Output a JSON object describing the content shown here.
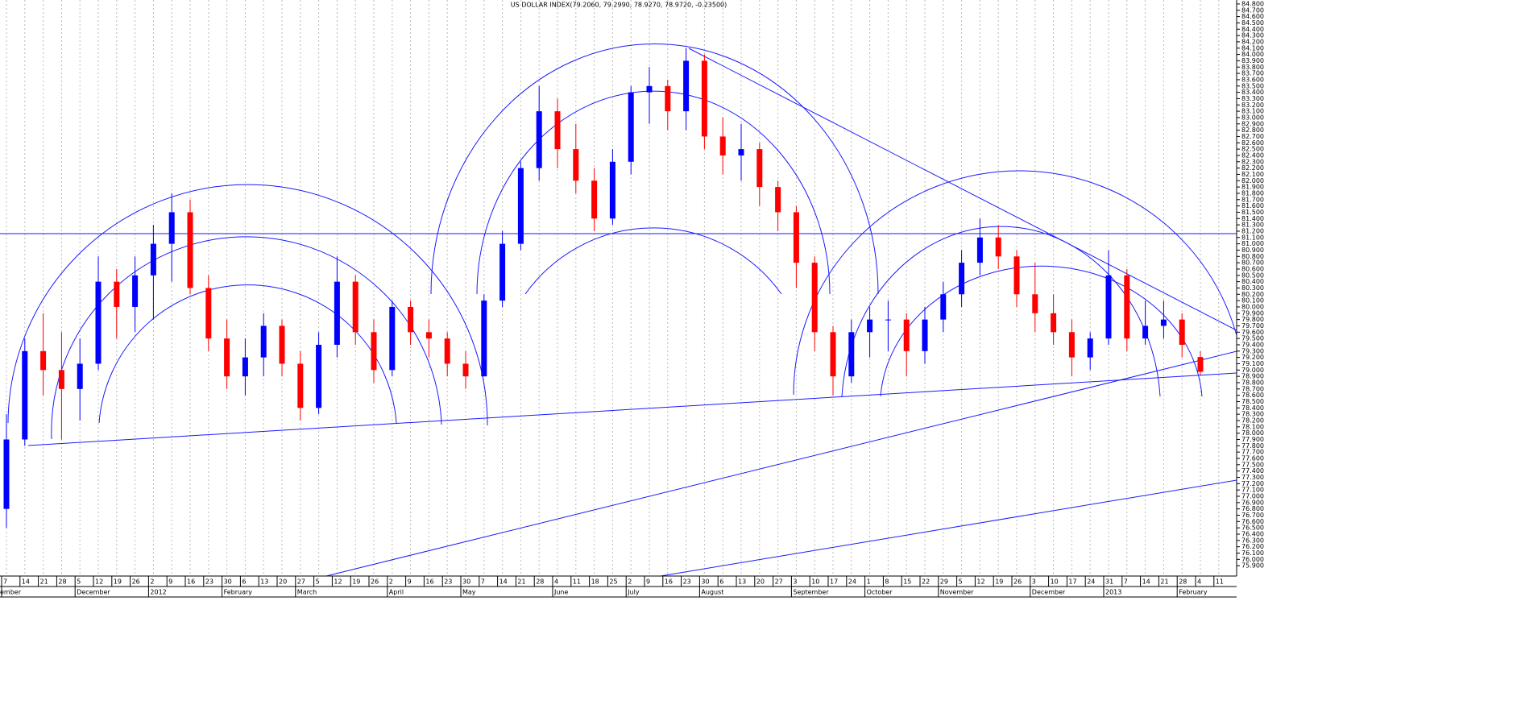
{
  "chart_data": {
    "type": "candlestick",
    "title": "US DOLLAR INDEX(79.2060, 79.2990, 78.9270, 78.9720, -0.23500)",
    "categories": [
      "7",
      "14",
      "21",
      "28",
      "5",
      "12",
      "19",
      "26",
      "2",
      "9",
      "16",
      "23",
      "30",
      "6",
      "13",
      "20",
      "27",
      "5",
      "12",
      "19",
      "26",
      "2",
      "9",
      "16",
      "23",
      "30",
      "7",
      "14",
      "21",
      "28",
      "4",
      "11",
      "18",
      "25",
      "2",
      "9",
      "16",
      "23",
      "30",
      "6",
      "13",
      "20",
      "27",
      "3",
      "10",
      "17",
      "24",
      "1",
      "8",
      "15",
      "22",
      "29",
      "5",
      "12",
      "19",
      "26",
      "3",
      "10",
      "17",
      "24",
      "31",
      "7",
      "14",
      "21",
      "28",
      "4",
      "11"
    ],
    "month_labels": [
      "ember",
      null,
      null,
      null,
      "December",
      null,
      null,
      null,
      "2012",
      null,
      null,
      null,
      "February",
      null,
      null,
      null,
      "March",
      null,
      null,
      null,
      null,
      "April",
      null,
      null,
      null,
      "May",
      null,
      null,
      null,
      null,
      "June",
      null,
      null,
      null,
      "July",
      null,
      null,
      null,
      "August",
      null,
      null,
      null,
      null,
      "September",
      null,
      null,
      null,
      "October",
      null,
      null,
      null,
      "November",
      null,
      null,
      null,
      null,
      "December",
      null,
      null,
      null,
      "2013",
      null,
      null,
      null,
      "February",
      null,
      null
    ],
    "open": [
      76.8,
      77.9,
      79.3,
      79.0,
      78.7,
      79.1,
      80.4,
      80.0,
      80.5,
      81.0,
      81.5,
      80.3,
      79.5,
      78.9,
      79.2,
      79.7,
      79.1,
      78.4,
      79.4,
      80.4,
      79.6,
      79.0,
      80.0,
      79.6,
      79.5,
      79.1,
      78.9,
      80.1,
      81.0,
      82.2,
      83.1,
      82.5,
      82.0,
      81.4,
      82.3,
      83.4,
      83.5,
      83.1,
      83.9,
      82.7,
      82.4,
      82.5,
      81.9,
      81.5,
      80.7,
      79.6,
      78.9,
      79.6,
      79.8,
      79.8,
      79.3,
      79.8,
      80.2,
      80.7,
      81.1,
      80.8,
      80.2,
      79.9,
      79.6,
      79.2,
      79.5,
      80.5,
      79.5,
      79.7,
      79.8,
      79.206,
      null
    ],
    "high": [
      78.3,
      79.5,
      79.9,
      79.6,
      79.5,
      80.8,
      80.6,
      80.8,
      81.3,
      81.8,
      81.7,
      80.5,
      79.8,
      79.5,
      79.9,
      79.8,
      79.3,
      79.6,
      80.8,
      80.5,
      79.8,
      80.1,
      80.1,
      79.8,
      79.6,
      79.3,
      80.2,
      81.2,
      82.3,
      83.5,
      83.3,
      82.9,
      82.2,
      82.5,
      83.5,
      83.8,
      83.6,
      84.1,
      84.0,
      83.0,
      82.9,
      82.6,
      82.0,
      81.6,
      80.8,
      79.7,
      79.8,
      80.0,
      80.1,
      79.9,
      80.0,
      80.4,
      80.9,
      81.4,
      81.3,
      80.9,
      80.7,
      80.2,
      79.8,
      79.6,
      80.9,
      80.6,
      80.1,
      80.1,
      79.9,
      79.299,
      null
    ],
    "low": [
      76.5,
      77.8,
      78.6,
      77.9,
      78.2,
      79.0,
      79.5,
      79.6,
      79.8,
      80.4,
      80.2,
      79.3,
      78.7,
      78.6,
      78.9,
      78.9,
      78.2,
      78.3,
      79.2,
      79.4,
      78.8,
      78.9,
      79.4,
      79.2,
      78.9,
      78.7,
      78.9,
      80.0,
      80.9,
      82.0,
      82.2,
      81.8,
      81.2,
      81.3,
      82.1,
      82.9,
      82.8,
      82.8,
      82.5,
      82.1,
      82.0,
      81.6,
      81.2,
      80.3,
      79.3,
      78.6,
      78.8,
      79.2,
      79.3,
      78.9,
      79.1,
      79.6,
      80.0,
      80.5,
      80.6,
      80.0,
      79.6,
      79.4,
      78.9,
      79.0,
      79.4,
      79.3,
      79.4,
      79.5,
      79.2,
      78.927,
      null
    ],
    "close": [
      77.9,
      79.3,
      79.0,
      78.7,
      79.1,
      80.4,
      80.0,
      80.5,
      81.0,
      81.5,
      80.3,
      79.5,
      78.9,
      79.2,
      79.7,
      79.1,
      78.4,
      79.4,
      80.4,
      79.6,
      79.0,
      80.0,
      79.6,
      79.5,
      79.1,
      78.9,
      80.1,
      81.0,
      82.2,
      83.1,
      82.5,
      82.0,
      81.4,
      82.3,
      83.4,
      83.5,
      83.1,
      83.9,
      82.7,
      82.4,
      82.5,
      81.9,
      81.5,
      80.7,
      79.6,
      78.9,
      79.6,
      79.8,
      79.8,
      79.3,
      79.8,
      80.2,
      80.7,
      81.1,
      80.8,
      80.2,
      79.9,
      79.6,
      79.2,
      79.5,
      80.5,
      79.5,
      79.7,
      79.8,
      79.4,
      78.972,
      null
    ],
    "up_color": "#0000ff",
    "down_color": "#ff0000",
    "ylim": [
      75.8,
      84.85
    ],
    "yticks": [
      {
        "value": 84.8,
        "label": "84.800"
      },
      {
        "value": 84.7,
        "label": "84.700"
      },
      {
        "value": 84.6,
        "label": "84.600"
      },
      {
        "value": 84.5,
        "label": "84.500"
      },
      {
        "value": 84.4,
        "label": "84.400"
      },
      {
        "value": 84.3,
        "label": "84.300"
      },
      {
        "value": 84.2,
        "label": "84.200"
      },
      {
        "value": 84.1,
        "label": "84.100"
      },
      {
        "value": 84,
        "label": "84.000"
      },
      {
        "value": 83.9,
        "label": "83.900"
      },
      {
        "value": 83.8,
        "label": "83.800"
      },
      {
        "value": 83.7,
        "label": "83.700"
      },
      {
        "value": 83.6,
        "label": "83.600"
      },
      {
        "value": 83.5,
        "label": "83.500"
      },
      {
        "value": 83.4,
        "label": "83.400"
      },
      {
        "value": 83.3,
        "label": "83.300"
      },
      {
        "value": 83.2,
        "label": "83.200"
      },
      {
        "value": 83.1,
        "label": "83.100"
      },
      {
        "value": 83,
        "label": "83.000"
      },
      {
        "value": 82.9,
        "label": "82.900"
      },
      {
        "value": 82.8,
        "label": "82.800"
      },
      {
        "value": 82.7,
        "label": "82.700"
      },
      {
        "value": 82.6,
        "label": "82.600"
      },
      {
        "value": 82.5,
        "label": "82.500"
      },
      {
        "value": 82.4,
        "label": "82.400"
      },
      {
        "value": 82.3,
        "label": "82.300"
      },
      {
        "value": 82.2,
        "label": "82.200"
      },
      {
        "value": 82.1,
        "label": "82.100"
      },
      {
        "value": 82,
        "label": "82.000"
      },
      {
        "value": 81.9,
        "label": "81.900"
      },
      {
        "value": 81.8,
        "label": "81.800"
      },
      {
        "value": 81.7,
        "label": "81.700"
      },
      {
        "value": 81.6,
        "label": "81.600"
      },
      {
        "value": 81.5,
        "label": "81.500"
      },
      {
        "value": 81.4,
        "label": "81.400"
      },
      {
        "value": 81.3,
        "label": "81.300"
      },
      {
        "value": 81.2,
        "label": "81.200"
      },
      {
        "value": 81.1,
        "label": "81.100"
      },
      {
        "value": 81,
        "label": "81.000"
      },
      {
        "value": 80.9,
        "label": "80.900"
      },
      {
        "value": 80.8,
        "label": "80.800"
      },
      {
        "value": 80.7,
        "label": "80.700"
      },
      {
        "value": 80.6,
        "label": "80.600"
      },
      {
        "value": 80.5,
        "label": "80.500"
      },
      {
        "value": 80.4,
        "label": "80.400"
      },
      {
        "value": 80.3,
        "label": "80.300"
      },
      {
        "value": 80.2,
        "label": "80.200"
      },
      {
        "value": 80.1,
        "label": "80.100"
      },
      {
        "value": 80,
        "label": "80.000"
      },
      {
        "value": 79.9,
        "label": "79.900"
      },
      {
        "value": 79.8,
        "label": "79.800"
      },
      {
        "value": 79.7,
        "label": "79.700"
      },
      {
        "value": 79.6,
        "label": "79.600"
      },
      {
        "value": 79.5,
        "label": "79.500"
      },
      {
        "value": 79.4,
        "label": "79.400"
      },
      {
        "value": 79.3,
        "label": "79.300"
      },
      {
        "value": 79.2,
        "label": "79.200"
      },
      {
        "value": 79.1,
        "label": "79.100"
      },
      {
        "value": 79,
        "label": "79.000"
      },
      {
        "value": 78.9,
        "label": "78.900"
      },
      {
        "value": 78.8,
        "label": "78.800"
      },
      {
        "value": 78.7,
        "label": "78.700"
      },
      {
        "value": 78.6,
        "label": "78.600"
      },
      {
        "value": 78.5,
        "label": "78.500"
      },
      {
        "value": 78.4,
        "label": "78.400"
      },
      {
        "value": 78.3,
        "label": "78.300"
      },
      {
        "value": 78.2,
        "label": "78.200"
      },
      {
        "value": 78.1,
        "label": "78.100"
      },
      {
        "value": 78,
        "label": "78.000"
      },
      {
        "value": 77.9,
        "label": "77.900"
      },
      {
        "value": 77.8,
        "label": "77.800"
      },
      {
        "value": 77.7,
        "label": "77.700"
      },
      {
        "value": 77.6,
        "label": "77.600"
      },
      {
        "value": 77.5,
        "label": "77.500"
      },
      {
        "value": 77.4,
        "label": "77.400"
      },
      {
        "value": 77.3,
        "label": "77.300"
      },
      {
        "value": 77.2,
        "label": "77.200"
      },
      {
        "value": 77.1,
        "label": "77.100"
      },
      {
        "value": 77,
        "label": "77.000"
      },
      {
        "value": 76.9,
        "label": "76.900"
      },
      {
        "value": 76.8,
        "label": "76.800"
      },
      {
        "value": 76.7,
        "label": "76.700"
      },
      {
        "value": 76.6,
        "label": "76.600"
      },
      {
        "value": 76.5,
        "label": "76.500"
      },
      {
        "value": 76.4,
        "label": "76.400"
      },
      {
        "value": 76.3,
        "label": "76.300"
      },
      {
        "value": 76.2,
        "label": "76.200"
      },
      {
        "value": 76.1,
        "label": "76.100"
      },
      {
        "value": 76,
        "label": "76.000"
      },
      {
        "value": 75.9,
        "label": "75.900"
      }
    ]
  }
}
